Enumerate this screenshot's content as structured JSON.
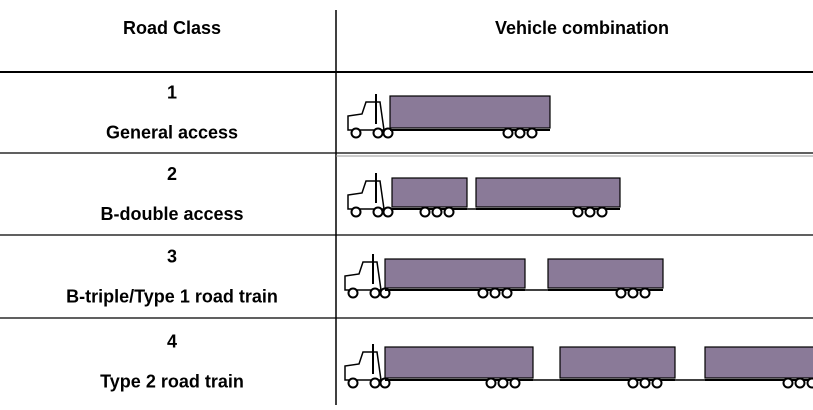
{
  "table": {
    "header": [
      "Road Class",
      "Vehicle combination"
    ],
    "rows": [
      {
        "class": "1",
        "name": "General access"
      },
      {
        "class": "2",
        "name": "B-double access"
      },
      {
        "class": "3",
        "name": "B-triple/Type 1 road train"
      },
      {
        "class": "4",
        "name": "Type 2 road train"
      }
    ]
  }
}
